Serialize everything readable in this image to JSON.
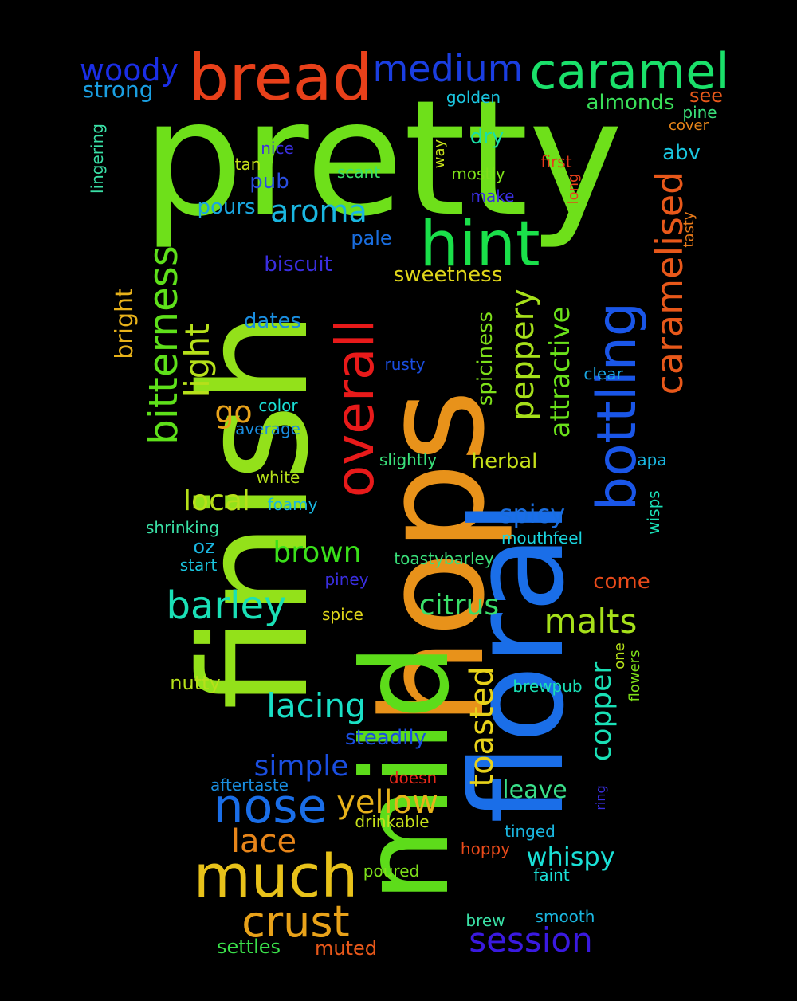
{
  "words": [
    {
      "text": "pretty",
      "color": "#6ee01a",
      "vertical": false
    },
    {
      "text": "hops",
      "color": "#e8921a",
      "vertical": true
    },
    {
      "text": "finish",
      "color": "#93e11a",
      "vertical": true
    },
    {
      "text": "mild",
      "color": "#5ddc1a",
      "vertical": true
    },
    {
      "text": "floral",
      "color": "#1a6ee8",
      "vertical": true
    },
    {
      "text": "bread",
      "color": "#e8401a",
      "vertical": false
    },
    {
      "text": "caramel",
      "color": "#1ae06a",
      "vertical": false
    },
    {
      "text": "medium",
      "color": "#1a3ee0",
      "vertical": false
    },
    {
      "text": "woody",
      "color": "#1a2ee6",
      "vertical": false
    },
    {
      "text": "strong",
      "color": "#1a9ee0",
      "vertical": false
    },
    {
      "text": "hint",
      "color": "#1ae04a",
      "vertical": false
    },
    {
      "text": "overall",
      "color": "#e81a1a",
      "vertical": true
    },
    {
      "text": "bottling",
      "color": "#1a56e8",
      "vertical": true
    },
    {
      "text": "caramelised",
      "color": "#e8581a",
      "vertical": true
    },
    {
      "text": "bitterness",
      "color": "#5ee01a",
      "vertical": true
    },
    {
      "text": "light",
      "color": "#b6e01a",
      "vertical": true
    },
    {
      "text": "aroma",
      "color": "#1ab6e0",
      "vertical": false
    },
    {
      "text": "peppery",
      "color": "#a6e01a",
      "vertical": true
    },
    {
      "text": "attractive",
      "color": "#6ae01a",
      "vertical": true
    },
    {
      "text": "much",
      "color": "#e8c21a",
      "vertical": false
    },
    {
      "text": "nose",
      "color": "#1a6ee8",
      "vertical": false
    },
    {
      "text": "barley",
      "color": "#1ae0b6",
      "vertical": false
    },
    {
      "text": "lacing",
      "color": "#1ae0c6",
      "vertical": false
    },
    {
      "text": "crust",
      "color": "#e8a21a",
      "vertical": false
    },
    {
      "text": "malts",
      "color": "#a6e01a",
      "vertical": false
    },
    {
      "text": "copper",
      "color": "#1ae0b6",
      "vertical": true
    },
    {
      "text": "toasted",
      "color": "#e8d21a",
      "vertical": true
    },
    {
      "text": "session",
      "color": "#3a1ae0",
      "vertical": false
    },
    {
      "text": "yellow",
      "color": "#e8b21a",
      "vertical": false
    },
    {
      "text": "lace",
      "color": "#e8861a",
      "vertical": false
    },
    {
      "text": "simple",
      "color": "#1a4ee0",
      "vertical": false
    },
    {
      "text": "brown",
      "color": "#3ae01a",
      "vertical": false
    },
    {
      "text": "citrus",
      "color": "#3ae06a",
      "vertical": false
    },
    {
      "text": "local",
      "color": "#b6e01a",
      "vertical": false
    },
    {
      "text": "go",
      "color": "#e8a21a",
      "vertical": false
    },
    {
      "text": "spicy",
      "color": "#1a6ee0",
      "vertical": false
    },
    {
      "text": "whispy",
      "color": "#1ae0d6",
      "vertical": false
    },
    {
      "text": "leave",
      "color": "#3ae08a",
      "vertical": false
    },
    {
      "text": "bright",
      "color": "#e8b21a",
      "vertical": true
    },
    {
      "text": "sweetness",
      "color": "#e0d61a",
      "vertical": false
    },
    {
      "text": "biscuit",
      "color": "#3a2ee0",
      "vertical": false
    },
    {
      "text": "dates",
      "color": "#1a8ee0",
      "vertical": false
    },
    {
      "text": "spiciness",
      "color": "#7ee01a",
      "vertical": true
    },
    {
      "text": "herbal",
      "color": "#c6e01a",
      "vertical": false
    },
    {
      "text": "almonds",
      "color": "#3ae05a",
      "vertical": false
    },
    {
      "text": "come",
      "color": "#e84a1a",
      "vertical": false
    },
    {
      "text": "pours",
      "color": "#1aa6e0",
      "vertical": false
    },
    {
      "text": "pub",
      "color": "#2a4ee0",
      "vertical": false
    },
    {
      "text": "pale",
      "color": "#1a6ee0",
      "vertical": false
    },
    {
      "text": "dry",
      "color": "#1ae0a6",
      "vertical": false
    },
    {
      "text": "abv",
      "color": "#1ac6e0",
      "vertical": false
    },
    {
      "text": "see",
      "color": "#e8581a",
      "vertical": false
    },
    {
      "text": "oz",
      "color": "#1ab6e0",
      "vertical": false
    },
    {
      "text": "nutty",
      "color": "#b6e01a",
      "vertical": false
    },
    {
      "text": "steadily",
      "color": "#1a4ee0",
      "vertical": false
    },
    {
      "text": "golden",
      "color": "#1ac6e0",
      "vertical": false
    },
    {
      "text": "pine",
      "color": "#3ae07a",
      "vertical": false
    },
    {
      "text": "cover",
      "color": "#e8861a",
      "vertical": false
    },
    {
      "text": "lingering",
      "color": "#3ae0a6",
      "vertical": true
    },
    {
      "text": "nice",
      "color": "#3a2ee0",
      "vertical": false
    },
    {
      "text": "tan",
      "color": "#c6e01a",
      "vertical": false
    },
    {
      "text": "scant",
      "color": "#3ae06a",
      "vertical": false
    },
    {
      "text": "way",
      "color": "#c6e01a",
      "vertical": true
    },
    {
      "text": "mostly",
      "color": "#7ee01a",
      "vertical": false
    },
    {
      "text": "first",
      "color": "#e83a1a",
      "vertical": false
    },
    {
      "text": "long",
      "color": "#e8401a",
      "vertical": true
    },
    {
      "text": "make",
      "color": "#3a2ee0",
      "vertical": false
    },
    {
      "text": "tasty",
      "color": "#e87a1a",
      "vertical": true
    },
    {
      "text": "rusty",
      "color": "#1a4ee0",
      "vertical": false
    },
    {
      "text": "clear",
      "color": "#1aa6e0",
      "vertical": false
    },
    {
      "text": "color",
      "color": "#1ae0d6",
      "vertical": false
    },
    {
      "text": "average",
      "color": "#1a8ee0",
      "vertical": false
    },
    {
      "text": "slightly",
      "color": "#3ae07a",
      "vertical": false
    },
    {
      "text": "apa",
      "color": "#1ab6e0",
      "vertical": false
    },
    {
      "text": "white",
      "color": "#b6e01a",
      "vertical": false
    },
    {
      "text": "foamy",
      "color": "#1ab6e0",
      "vertical": false
    },
    {
      "text": "wisps",
      "color": "#1ae0b6",
      "vertical": true
    },
    {
      "text": "shrinking",
      "color": "#3ae0a6",
      "vertical": false
    },
    {
      "text": "mouthfeel",
      "color": "#1ad6e0",
      "vertical": false
    },
    {
      "text": "start",
      "color": "#1ac6e0",
      "vertical": false
    },
    {
      "text": "toastybarley",
      "color": "#3ae07a",
      "vertical": false
    },
    {
      "text": "piney",
      "color": "#3a2ee0",
      "vertical": false
    },
    {
      "text": "spice",
      "color": "#e0d61a",
      "vertical": false
    },
    {
      "text": "one",
      "color": "#b6e01a",
      "vertical": true
    },
    {
      "text": "flowers",
      "color": "#7ee01a",
      "vertical": true
    },
    {
      "text": "brewpub",
      "color": "#1ae0b6",
      "vertical": false
    },
    {
      "text": "aftertaste",
      "color": "#1a8ee0",
      "vertical": false
    },
    {
      "text": "doesn",
      "color": "#e82a1a",
      "vertical": false
    },
    {
      "text": "ring",
      "color": "#3a2ee0",
      "vertical": true
    },
    {
      "text": "drinkable",
      "color": "#c6e01a",
      "vertical": false
    },
    {
      "text": "tinged",
      "color": "#1ab6e0",
      "vertical": false
    },
    {
      "text": "hoppy",
      "color": "#e84a1a",
      "vertical": false
    },
    {
      "text": "poured",
      "color": "#7ee01a",
      "vertical": false
    },
    {
      "text": "faint",
      "color": "#1ae0d6",
      "vertical": false
    },
    {
      "text": "smooth",
      "color": "#1ab6e0",
      "vertical": false
    },
    {
      "text": "brew",
      "color": "#3ae0a6",
      "vertical": false
    },
    {
      "text": "settles",
      "color": "#3ae04a",
      "vertical": false
    },
    {
      "text": "muted",
      "color": "#e8581a",
      "vertical": false
    }
  ]
}
